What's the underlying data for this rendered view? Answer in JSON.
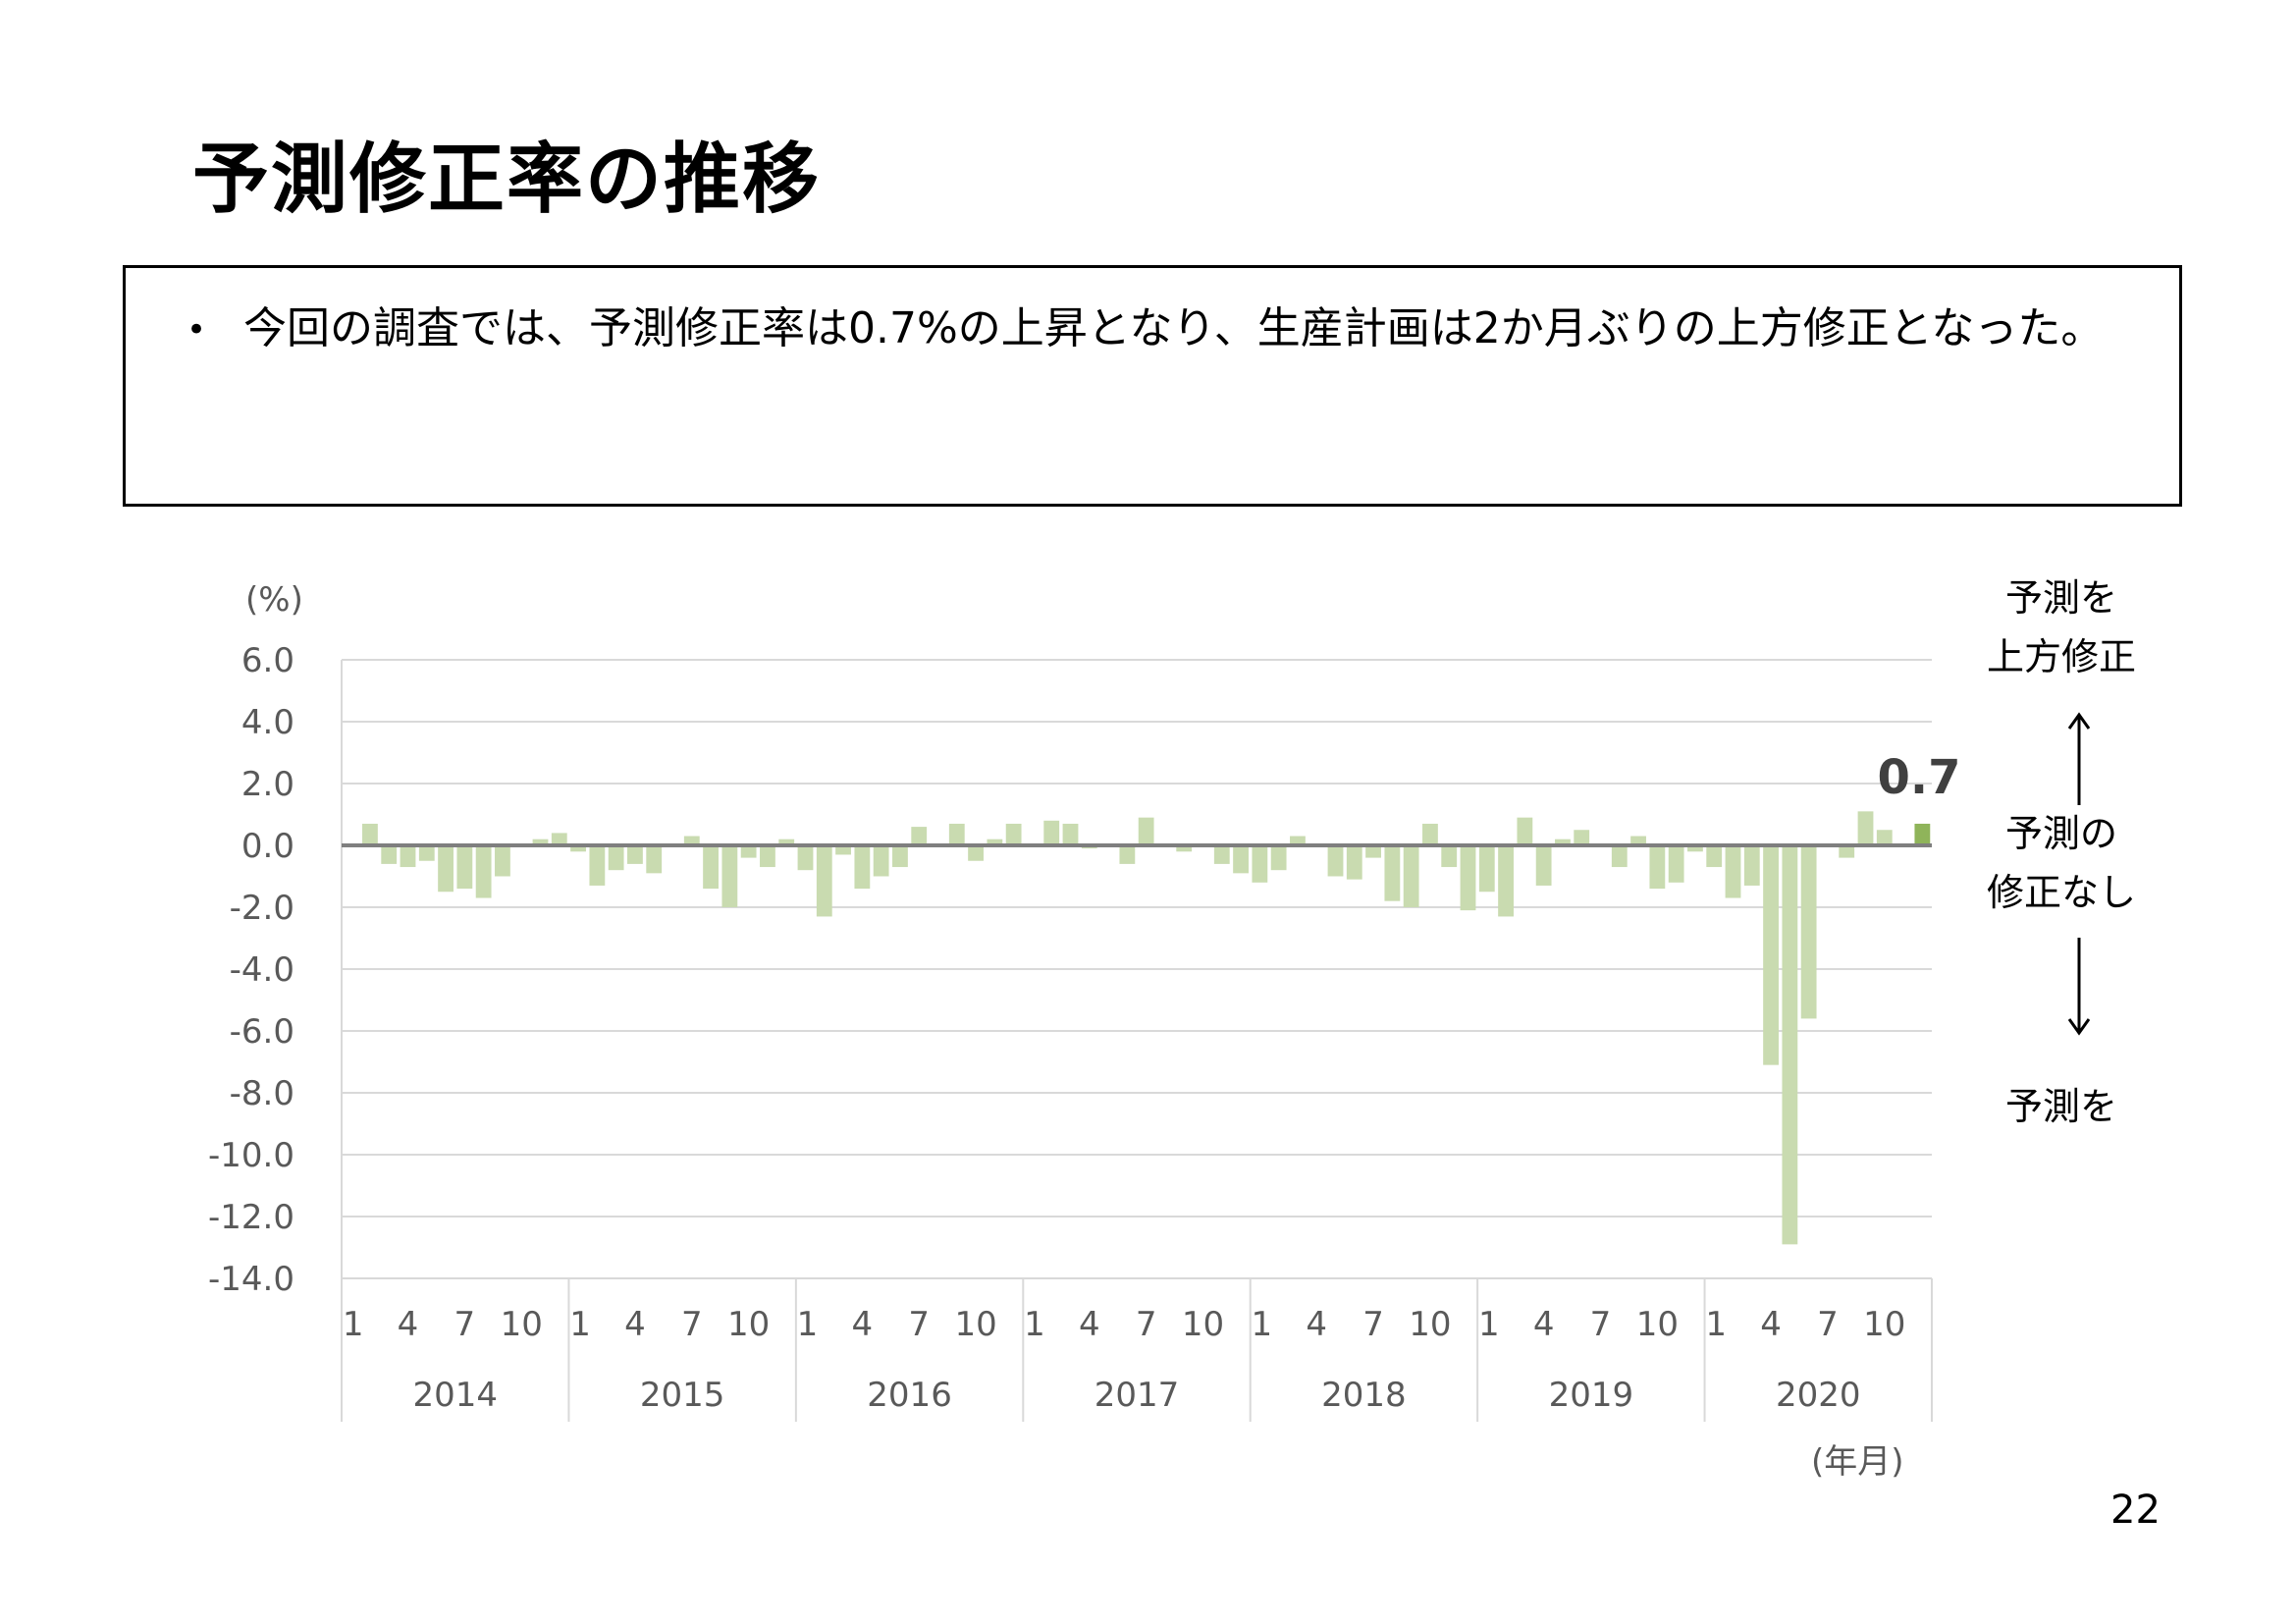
{
  "title": "予測修正率の推移",
  "summary": {
    "bullet": "•",
    "text": "今回の調査では、予測修正率は0.7%の上昇となり、生産計画は2か月ぶりの上方修正となった。"
  },
  "side_notes": {
    "upper": [
      "予測を",
      "上方修正"
    ],
    "middle": [
      "予測の",
      "修正なし"
    ],
    "lower": [
      "予測を"
    ]
  },
  "page_number": "22",
  "colors": {
    "bar": "#c9dbb0",
    "bar_latest": "#8fb45a",
    "zero_line": "#7f7f7f",
    "grid": "#d9d9d9"
  },
  "chart_data": {
    "type": "bar",
    "title": "",
    "ylabel": "(%)",
    "xlabel": "(年月)",
    "ylim": [
      -14,
      6
    ],
    "y_ticks": [
      "6.0",
      "4.0",
      "2.0",
      "0.0",
      "-2.0",
      "-4.0",
      "-6.0",
      "-8.0",
      "-10.0",
      "-12.0",
      "-14.0"
    ],
    "month_ticks": [
      "1",
      "4",
      "7",
      "10"
    ],
    "years": [
      "2014",
      "2015",
      "2016",
      "2017",
      "2018",
      "2019",
      "2020"
    ],
    "x_start": "2014-01",
    "highlight_label": "0.7",
    "grid": true,
    "values": [
      0.0,
      0.7,
      -0.6,
      -0.7,
      -0.5,
      -1.5,
      -1.4,
      -1.7,
      -1.0,
      0.0,
      0.2,
      0.4,
      -0.2,
      -1.3,
      -0.8,
      -0.6,
      -0.9,
      0.0,
      0.3,
      -1.4,
      -2.0,
      -0.4,
      -0.7,
      0.2,
      -0.8,
      -2.3,
      -0.3,
      -1.4,
      -1.0,
      -0.7,
      0.6,
      0.0,
      0.7,
      -0.5,
      0.2,
      0.7,
      0.0,
      0.8,
      0.7,
      -0.1,
      0.0,
      -0.6,
      0.9,
      0.0,
      -0.2,
      0.0,
      -0.6,
      -0.9,
      -1.2,
      -0.8,
      0.3,
      0.0,
      -1.0,
      -1.1,
      -0.4,
      -1.8,
      -2.0,
      0.7,
      -0.7,
      -2.1,
      -1.5,
      -2.3,
      0.9,
      -1.3,
      0.2,
      0.5,
      0.0,
      -0.7,
      0.3,
      -1.4,
      -1.2,
      -0.2,
      -0.7,
      -1.7,
      -1.3,
      -7.1,
      -12.9,
      -5.6,
      0.0,
      -0.4,
      1.1,
      0.5,
      0.0,
      0.7
    ]
  }
}
